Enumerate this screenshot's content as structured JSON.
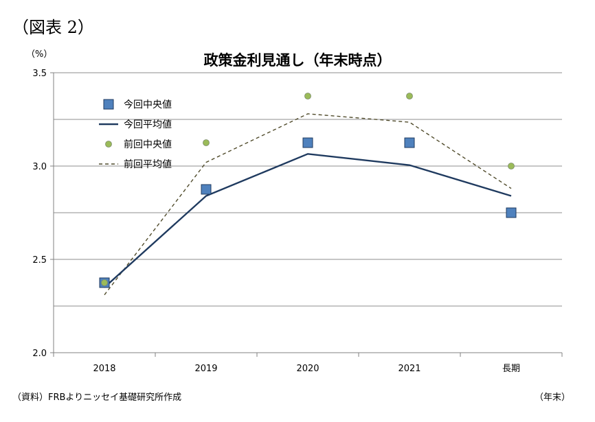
{
  "figure_label": "（図表 2）",
  "unit_label": "（%）",
  "source_note": "（資料）FRBよりニッセイ基礎研究所作成",
  "x_unit_label": "（年末）",
  "chart_data": {
    "type": "line",
    "title": "政策金利見通し（年末時点）",
    "categories": [
      "2018",
      "2019",
      "2020",
      "2021",
      "長期"
    ],
    "ylim": [
      2.0,
      3.5
    ],
    "yticks": [
      "2.0",
      "2.5",
      "3.0",
      "3.5"
    ],
    "grid": true,
    "legend_position": "top-left",
    "series": [
      {
        "name": "今回中央値",
        "kind": "marker-square",
        "color": "#4f81bd",
        "values": [
          2.375,
          2.875,
          3.125,
          3.125,
          2.75
        ]
      },
      {
        "name": "今回平均値",
        "kind": "solid-line",
        "color": "#1f3a5f",
        "values": [
          2.35,
          2.84,
          3.065,
          3.005,
          2.84
        ]
      },
      {
        "name": "前回中央値",
        "kind": "marker-dot",
        "color": "#9bbb59",
        "values": [
          2.375,
          3.125,
          3.375,
          3.375,
          3.0
        ]
      },
      {
        "name": "前回平均値",
        "kind": "dashed-line",
        "color": "#4f4a2a",
        "values": [
          2.31,
          3.02,
          3.28,
          3.235,
          2.88
        ]
      }
    ]
  }
}
